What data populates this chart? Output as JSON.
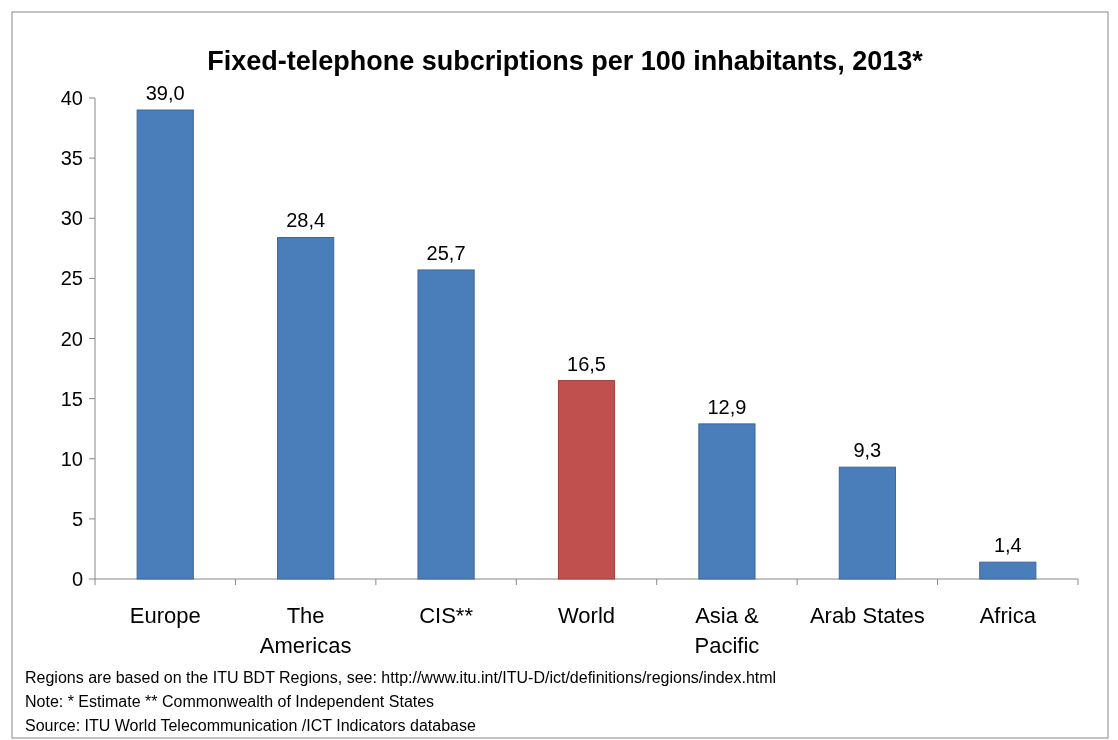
{
  "chart_data": {
    "type": "bar",
    "title": "Fixed-telephone subcriptions per 100 inhabitants, 2013*",
    "categories": [
      "Europe",
      "The Americas",
      "CIS**",
      "World",
      "Asia & Pacific",
      "Arab States",
      "Africa"
    ],
    "values": [
      39.0,
      28.4,
      25.7,
      16.5,
      12.9,
      9.3,
      1.4
    ],
    "colors": [
      "#4a7ebb",
      "#4a7ebb",
      "#4a7ebb",
      "#c0504d",
      "#4a7ebb",
      "#4a7ebb",
      "#4a7ebb"
    ],
    "value_labels": [
      "39,0",
      "28,4",
      "25,7",
      "16,5",
      "12,9",
      "9,3",
      "1,4"
    ],
    "ylim": [
      0,
      40
    ],
    "yticks": [
      0,
      5,
      10,
      15,
      20,
      25,
      30,
      35,
      40
    ],
    "grid": false,
    "annotations": [
      "Regions are based on the ITU BDT Regions, see: http://www.itu.int/ITU-D/ict/definitions/regions/index.html",
      "Note: * Estimate ** Commonwealth  of Independent  States",
      "Source:  ITU World  Telecommunication  /ICT Indicators database"
    ]
  }
}
